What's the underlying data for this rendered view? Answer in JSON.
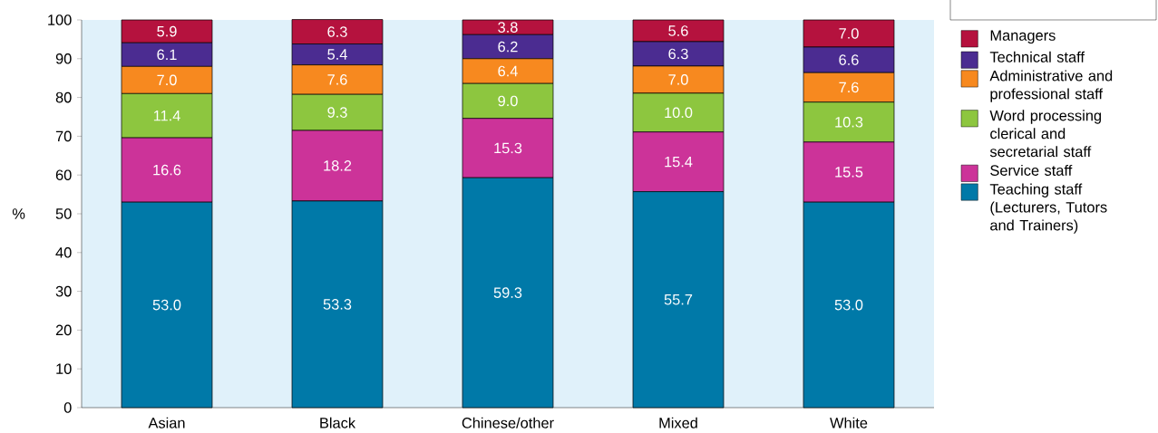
{
  "chart_data": {
    "type": "bar",
    "stacked": true,
    "ylabel": "%",
    "categories": [
      "Asian",
      "Black",
      "Chinese/other",
      "Mixed",
      "White"
    ],
    "series": [
      {
        "name": "Teaching staff (Lecturers, Tutors and Trainers)",
        "color": "#0079a8",
        "values": [
          53.0,
          53.3,
          59.3,
          55.7,
          53.0
        ],
        "value_labels": [
          "53.0",
          "53.3",
          "59.3",
          "55.7",
          "53.0"
        ]
      },
      {
        "name": "Service staff",
        "color": "#cc3399",
        "values": [
          16.6,
          18.2,
          15.3,
          15.4,
          15.5
        ],
        "value_labels": [
          "16.6",
          "18.2",
          "15.3",
          "15.4",
          "15.5"
        ]
      },
      {
        "name": "Word processing clerical and secretarial staff",
        "color": "#8dc63f",
        "values": [
          11.4,
          9.3,
          9.0,
          10.0,
          10.3
        ],
        "value_labels": [
          "11.4",
          "9.3",
          "9.0",
          "10.0",
          "10.3"
        ]
      },
      {
        "name": "Administrative and professional staff",
        "color": "#f7891f",
        "values": [
          7.0,
          7.6,
          6.4,
          7.0,
          7.6
        ],
        "value_labels": [
          "7.0",
          "7.6",
          "6.4",
          "7.0",
          "7.6"
        ]
      },
      {
        "name": "Technical staff",
        "color": "#4b2c91",
        "values": [
          6.1,
          5.4,
          6.2,
          6.3,
          6.6
        ],
        "value_labels": [
          "6.1",
          "5.4",
          "6.2",
          "6.3",
          "6.6"
        ]
      },
      {
        "name": "Managers",
        "color": "#b5123e",
        "values": [
          5.9,
          6.3,
          3.8,
          5.6,
          7.0
        ],
        "value_labels": [
          "5.9",
          "6.3",
          "3.8",
          "5.6",
          "7.0"
        ]
      }
    ],
    "ylim": [
      0,
      100
    ],
    "yticks": [
      0,
      10,
      20,
      30,
      40,
      50,
      60,
      70,
      80,
      90,
      100
    ],
    "legend": "right"
  }
}
